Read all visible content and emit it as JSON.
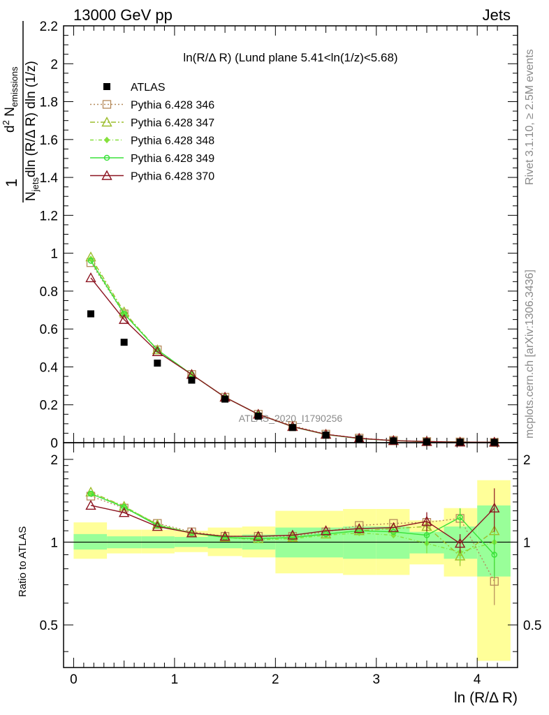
{
  "header": {
    "left": "13000 GeV pp",
    "right": "Jets"
  },
  "side_labels": {
    "rivet": "Rivet 3.1.10, ≥ 2.5M events",
    "mcplots": "mcplots.cern.ch [arXiv:1306.3436]"
  },
  "chart_data": [
    {
      "type": "scatter",
      "title": "ln(R/Δ R) (Lund plane 5.41<ln(1/z)<5.68)",
      "watermark": "ATLAS_2020_I1790256",
      "ylabel_parts": {
        "frac": "1",
        "Njets": "N",
        "jets_sub": "jets",
        "dln": "dln (R/Δ R) dln (1/z)",
        "d2": "d",
        "d2_sup": "2",
        "N": " N",
        "N_sub": "emissions"
      },
      "xlim": [
        -0.1,
        4.4
      ],
      "ylim": [
        0,
        2.2
      ],
      "yticks": [
        "0",
        "0.2",
        "0.4",
        "0.6",
        "0.8",
        "1",
        "1.2",
        "1.4",
        "1.6",
        "1.8",
        "2",
        "2.2"
      ],
      "x": [
        0.17,
        0.5,
        0.83,
        1.17,
        1.5,
        1.83,
        2.17,
        2.5,
        2.83,
        3.17,
        3.5,
        3.83,
        4.17
      ],
      "data": {
        "name": "ATLAS",
        "values": [
          0.68,
          0.53,
          0.42,
          0.33,
          0.23,
          0.14,
          0.08,
          0.04,
          0.02,
          0.01,
          0.005,
          0.003,
          0.002
        ]
      },
      "series": [
        {
          "name": "Pythia 6.428 346",
          "color": "#b5895a",
          "dash": "2,3",
          "marker": "square",
          "values": [
            0.95,
            0.68,
            0.49,
            0.36,
            0.24,
            0.15,
            0.09,
            0.045,
            0.024,
            0.012,
            0.006,
            0.004,
            0.0015
          ]
        },
        {
          "name": "Pythia 6.428 347",
          "color": "#9cbd2b",
          "dash": "7,3,2,3",
          "marker": "triangle",
          "values": [
            0.98,
            0.69,
            0.49,
            0.36,
            0.24,
            0.15,
            0.085,
            0.044,
            0.022,
            0.011,
            0.006,
            0.0036,
            0.0022
          ]
        },
        {
          "name": "Pythia 6.428 348",
          "color": "#85e03c",
          "dash": "5,3,1,3",
          "marker": "diamond",
          "values": [
            0.97,
            0.68,
            0.49,
            0.36,
            0.24,
            0.15,
            0.085,
            0.043,
            0.022,
            0.011,
            0.0055,
            0.0036,
            0.0022
          ]
        },
        {
          "name": "Pythia 6.428 349",
          "color": "#3ae23a",
          "dash": "",
          "marker": "circle",
          "values": [
            0.96,
            0.68,
            0.49,
            0.36,
            0.24,
            0.15,
            0.084,
            0.043,
            0.022,
            0.011,
            0.0052,
            0.0036,
            0.0018
          ]
        },
        {
          "name": "Pythia 6.428 370",
          "color": "#8c1421",
          "dash": "",
          "marker": "triangle-open",
          "values": [
            0.87,
            0.65,
            0.48,
            0.36,
            0.24,
            0.15,
            0.085,
            0.044,
            0.023,
            0.011,
            0.006,
            0.003,
            0.0027
          ]
        }
      ]
    },
    {
      "type": "scatter",
      "ylabel": "Ratio to ATLAS",
      "xlabel": "ln (R/Δ R)",
      "xlim": [
        -0.1,
        4.4
      ],
      "ylim": [
        0.35,
        2.3
      ],
      "log_y": true,
      "yticks": [
        "0.5",
        "1",
        "2"
      ],
      "xticks": [
        "0",
        "1",
        "2",
        "3",
        "4"
      ],
      "bins": [
        {
          "lo": 0.0,
          "hi": 0.33,
          "yellow": [
            0.87,
            1.18
          ],
          "green": [
            0.94,
            1.07
          ]
        },
        {
          "lo": 0.33,
          "hi": 0.67,
          "yellow": [
            0.91,
            1.11
          ],
          "green": [
            0.95,
            1.05
          ]
        },
        {
          "lo": 0.67,
          "hi": 1.0,
          "yellow": [
            0.91,
            1.11
          ],
          "green": [
            0.95,
            1.05
          ]
        },
        {
          "lo": 1.0,
          "hi": 1.33,
          "yellow": [
            0.92,
            1.1
          ],
          "green": [
            0.96,
            1.045
          ]
        },
        {
          "lo": 1.33,
          "hi": 1.67,
          "yellow": [
            0.89,
            1.13
          ],
          "green": [
            0.95,
            1.055
          ]
        },
        {
          "lo": 1.67,
          "hi": 2.0,
          "yellow": [
            0.88,
            1.14
          ],
          "green": [
            0.94,
            1.065
          ]
        },
        {
          "lo": 2.0,
          "hi": 2.33,
          "yellow": [
            0.77,
            1.3
          ],
          "green": [
            0.88,
            1.13
          ]
        },
        {
          "lo": 2.33,
          "hi": 2.67,
          "yellow": [
            0.77,
            1.3
          ],
          "green": [
            0.88,
            1.13
          ]
        },
        {
          "lo": 2.67,
          "hi": 3.0,
          "yellow": [
            0.76,
            1.32
          ],
          "green": [
            0.87,
            1.14
          ]
        },
        {
          "lo": 3.0,
          "hi": 3.33,
          "yellow": [
            0.76,
            1.32
          ],
          "green": [
            0.87,
            1.14
          ]
        },
        {
          "lo": 3.33,
          "hi": 3.67,
          "yellow": [
            0.83,
            1.2
          ],
          "green": [
            0.91,
            1.09
          ]
        },
        {
          "lo": 3.67,
          "hi": 4.0,
          "yellow": [
            0.75,
            1.33
          ],
          "green": [
            0.87,
            1.14
          ]
        },
        {
          "lo": 4.0,
          "hi": 4.33,
          "yellow": [
            0.37,
            1.68
          ],
          "green": [
            0.75,
            1.36
          ]
        }
      ],
      "series": [
        {
          "name": "Pythia 6.428 346",
          "values": [
            1.47,
            1.33,
            1.17,
            1.09,
            1.05,
            1.05,
            1.05,
            1.09,
            1.15,
            1.17,
            1.18,
            1.22,
            0.72
          ]
        },
        {
          "name": "Pythia 6.428 347",
          "values": [
            1.52,
            1.35,
            1.16,
            1.08,
            1.04,
            1.03,
            1.04,
            1.07,
            1.1,
            1.12,
            1.14,
            0.89,
            1.1
          ]
        },
        {
          "name": "Pythia 6.428 348",
          "values": [
            1.5,
            1.35,
            1.16,
            1.08,
            1.04,
            1.02,
            1.03,
            1.06,
            1.08,
            1.06,
            0.99,
            0.92,
            1.0
          ]
        },
        {
          "name": "Pythia 6.428 349",
          "values": [
            1.5,
            1.34,
            1.15,
            1.08,
            1.04,
            1.03,
            1.04,
            1.07,
            1.1,
            1.09,
            1.06,
            1.23,
            0.9
          ]
        },
        {
          "name": "Pythia 6.428 370",
          "values": [
            1.36,
            1.28,
            1.14,
            1.08,
            1.05,
            1.05,
            1.06,
            1.1,
            1.12,
            1.13,
            1.19,
            0.99,
            1.33
          ]
        }
      ]
    }
  ]
}
